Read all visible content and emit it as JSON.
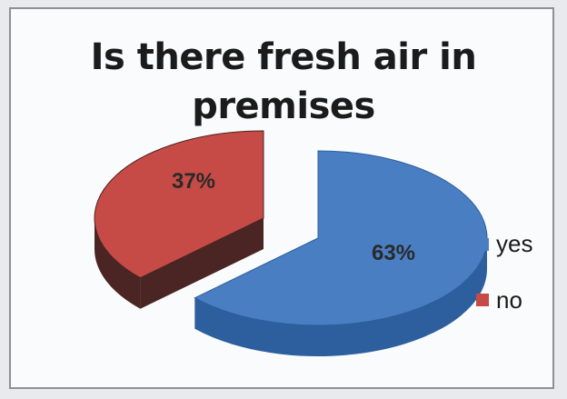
{
  "chart_data": {
    "type": "pie",
    "style": "3d-exploded",
    "title_lines": [
      "Is there fresh air in",
      "premises"
    ],
    "categories": [
      "yes",
      "no"
    ],
    "values": [
      63,
      37
    ],
    "data_labels": [
      "63%",
      "37%"
    ],
    "colors": {
      "yes": {
        "top": "#4a7ec2",
        "side": "#2d5f9e"
      },
      "no": {
        "top": "#c64a46",
        "side": "#4a2523"
      }
    },
    "legend": {
      "position": "right",
      "items": [
        "yes",
        "no"
      ]
    }
  }
}
